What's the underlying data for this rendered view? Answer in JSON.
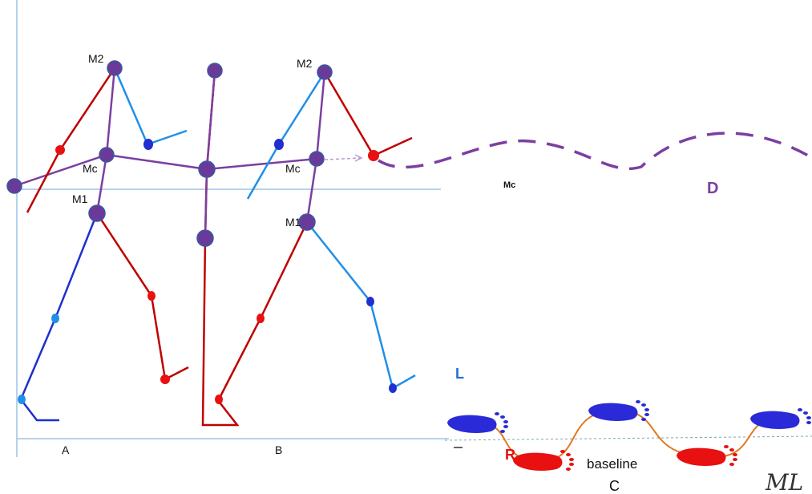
{
  "labels": {
    "m2_left": "M2",
    "m2_right": "M2",
    "mc_left": "Mc",
    "mc_right": "Mc",
    "mc_center": "Mc",
    "m1_left": "M1",
    "m1_right": "M1",
    "d": "D",
    "l": "L",
    "r": "R",
    "baseline": "baseline",
    "c": "C",
    "a": "A",
    "b": "B",
    "signature": "ML"
  },
  "colors": {
    "purple": "#7b3fa0",
    "joint": "#6a3a9a",
    "red": "#c00000",
    "blue": "#1f8fe8",
    "darkblue": "#1f2fd0",
    "axis": "#9dc3e6",
    "orange": "#e07a20",
    "foot_blue": "#2a2ad8",
    "foot_red": "#e81010"
  }
}
